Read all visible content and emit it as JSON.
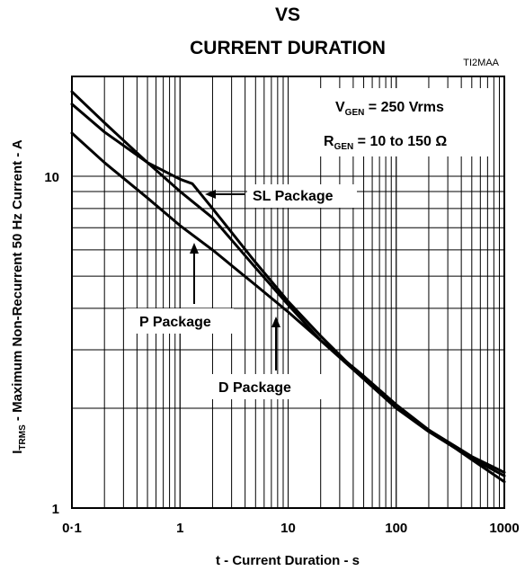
{
  "chart_data": {
    "type": "line",
    "title_line1": "VS",
    "title_line2": "CURRENT DURATION",
    "figure_code": "TI2MAA",
    "xlabel": "t - Current Duration - s",
    "ylabel": {
      "prefix": "I",
      "subscript": "TRMS",
      "rest": " - Maximum  Non-Recurrent 50 Hz Current  - A"
    },
    "x_scale": "log",
    "y_scale": "log",
    "xlim": [
      0.1,
      1000
    ],
    "ylim": [
      1,
      20
    ],
    "x_tick_labels": [
      "0·1",
      "1",
      "10",
      "100",
      "1000"
    ],
    "x_ticks": [
      0.1,
      1,
      10,
      100,
      1000
    ],
    "y_tick_labels": [
      "1",
      "10"
    ],
    "y_ticks": [
      1,
      10
    ],
    "grid": true,
    "conditions": [
      {
        "main": "V",
        "sub": "GEN",
        "rest": " = 250 Vrms"
      },
      {
        "main": "R",
        "sub": "GEN",
        "rest": " = 10 to 150 Ω"
      }
    ],
    "series": [
      {
        "name": "SL Package",
        "x": [
          0.1,
          0.2,
          0.5,
          1,
          1.3,
          2,
          5,
          10,
          20,
          50,
          100,
          200,
          500,
          1000
        ],
        "y": [
          16.5,
          13.6,
          11.0,
          9.8,
          9.5,
          8.0,
          5.5,
          4.2,
          3.3,
          2.45,
          2.0,
          1.7,
          1.41,
          1.25
        ]
      },
      {
        "name": "P Package",
        "x": [
          0.1,
          0.2,
          0.5,
          1,
          2,
          5,
          10,
          20,
          50,
          100,
          200,
          500,
          1000
        ],
        "y": [
          18.0,
          14.5,
          11.0,
          9.0,
          7.5,
          5.3,
          4.1,
          3.2,
          2.45,
          2.0,
          1.72,
          1.43,
          1.28
        ]
      },
      {
        "name": "D Package",
        "x": [
          0.1,
          0.2,
          0.5,
          1,
          2,
          5,
          10,
          20,
          50,
          100,
          200,
          500,
          1000
        ],
        "y": [
          13.5,
          11.0,
          8.6,
          7.1,
          6.0,
          4.7,
          3.9,
          3.2,
          2.5,
          2.05,
          1.72,
          1.4,
          1.2
        ]
      }
    ],
    "annotations": [
      {
        "text": "SL Package"
      },
      {
        "text": "P Package"
      },
      {
        "text": "D Package"
      }
    ]
  }
}
